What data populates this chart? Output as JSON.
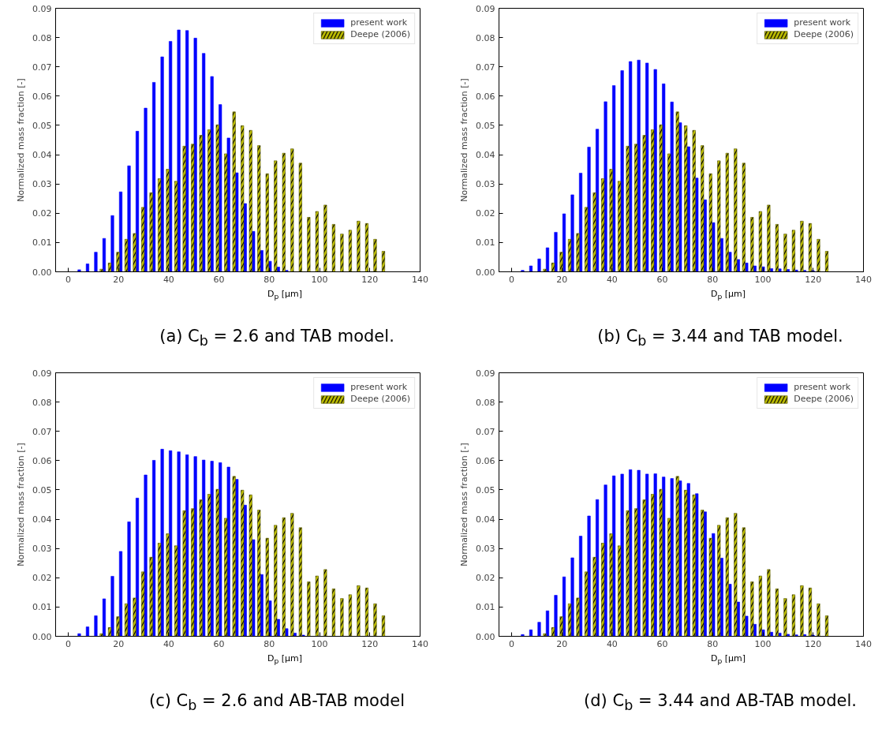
{
  "chart_data": [
    {
      "type": "bar",
      "title": "(a) C$_{b}$ = 2.6 and TAB model.",
      "xlabel": "D$_{p}$ [µm]",
      "ylabel": "Normalized mass fraction [-]",
      "legend": "top right",
      "grid": false,
      "xlim": [
        -5,
        140
      ],
      "xticks": [
        0,
        20,
        40,
        60,
        80,
        100,
        120,
        140
      ],
      "ylim": [
        0,
        0.09
      ],
      "yticks": [
        {
          "value": 0,
          "label": "0.00"
        },
        {
          "value": 0.01,
          "label": "0.01"
        },
        {
          "value": 0.02,
          "label": "0.02"
        },
        {
          "value": 0.03,
          "label": "0.03"
        },
        {
          "value": 0.04,
          "label": "0.04"
        },
        {
          "value": 0.05,
          "label": "0.05"
        },
        {
          "value": 0.06,
          "label": "0.06"
        },
        {
          "value": 0.07,
          "label": "0.07"
        },
        {
          "value": 0.08,
          "label": "0.08"
        },
        {
          "value": 0.09,
          "label": "0.09"
        }
      ],
      "series": [
        {
          "name": "present work",
          "color": "#0000ff",
          "x": [
            4.4,
            7.7,
            11,
            14.3,
            17.6,
            20.9,
            24.2,
            27.5,
            30.8,
            34.1,
            37.4,
            40.7,
            44,
            47.3,
            50.6,
            53.9,
            57.2,
            60.5,
            63.8,
            67.1,
            70.4,
            73.7,
            77,
            80.3,
            83.6,
            86.9
          ],
          "values": [
            0.0007,
            0.0027,
            0.0067,
            0.0114,
            0.0192,
            0.0273,
            0.0362,
            0.048,
            0.0559,
            0.0647,
            0.0734,
            0.0787,
            0.0826,
            0.0824,
            0.0798,
            0.0746,
            0.0667,
            0.0571,
            0.0457,
            0.0338,
            0.0233,
            0.0138,
            0.0073,
            0.0036,
            0.0016,
            0.0005
          ]
        },
        {
          "name": "Deepe (2006)",
          "color": "#bfbf00",
          "x": [
            13.2,
            16.5,
            19.8,
            23.1,
            26.4,
            29.7,
            33,
            36.3,
            39.6,
            42.9,
            46.2,
            49.5,
            52.8,
            56.1,
            59.4,
            62.7,
            66,
            69.3,
            72.6,
            75.9,
            79.2,
            82.5,
            85.8,
            89.1,
            92.4,
            95.7,
            99,
            102.3,
            105.6,
            108.9,
            112.2,
            115.5,
            118.8,
            122.1,
            125.4
          ],
          "values": [
            0.0009,
            0.003,
            0.0067,
            0.0111,
            0.0131,
            0.022,
            0.027,
            0.0318,
            0.035,
            0.0309,
            0.0429,
            0.0436,
            0.0466,
            0.0485,
            0.0502,
            0.0403,
            0.0546,
            0.0499,
            0.0483,
            0.0431,
            0.0335,
            0.0379,
            0.0405,
            0.042,
            0.0371,
            0.0186,
            0.0206,
            0.0228,
            0.0162,
            0.0129,
            0.0142,
            0.0173,
            0.0165,
            0.0111,
            0.007
          ]
        }
      ]
    },
    {
      "type": "bar",
      "title": "(b) C$_{b}$ = 3.44 and TAB model.",
      "xlabel": "D$_{p}$ [µm]",
      "ylabel": "Normalized mass fraction [-]",
      "legend": "top right",
      "grid": false,
      "xlim": [
        -5,
        140
      ],
      "xticks": [
        0,
        20,
        40,
        60,
        80,
        100,
        120,
        140
      ],
      "ylim": [
        0,
        0.09
      ],
      "yticks": [
        {
          "value": 0,
          "label": "0.00"
        },
        {
          "value": 0.01,
          "label": "0.01"
        },
        {
          "value": 0.02,
          "label": "0.02"
        },
        {
          "value": 0.03,
          "label": "0.03"
        },
        {
          "value": 0.04,
          "label": "0.04"
        },
        {
          "value": 0.05,
          "label": "0.05"
        },
        {
          "value": 0.06,
          "label": "0.06"
        },
        {
          "value": 0.07,
          "label": "0.07"
        },
        {
          "value": 0.08,
          "label": "0.08"
        },
        {
          "value": 0.09,
          "label": "0.09"
        }
      ],
      "series": [
        {
          "name": "present work",
          "color": "#0000ff",
          "x": [
            4.4,
            7.7,
            11,
            14.3,
            17.6,
            20.9,
            24.2,
            27.5,
            30.8,
            34.1,
            37.4,
            40.7,
            44,
            47.3,
            50.6,
            53.9,
            57.2,
            60.5,
            63.8,
            67.1,
            70.4,
            73.7,
            77,
            80.3,
            83.6,
            86.9,
            90.2,
            93.5,
            96.8,
            100.1,
            103.4,
            106.7,
            110,
            113.3,
            116.6,
            119.9
          ],
          "values": [
            0.0005,
            0.002,
            0.0044,
            0.0082,
            0.0135,
            0.0198,
            0.0263,
            0.0337,
            0.0426,
            0.0487,
            0.0581,
            0.0636,
            0.0687,
            0.0718,
            0.0723,
            0.0713,
            0.0691,
            0.0642,
            0.058,
            0.0509,
            0.0427,
            0.032,
            0.0246,
            0.0168,
            0.0114,
            0.0067,
            0.0042,
            0.003,
            0.002,
            0.0017,
            0.0011,
            0.001,
            0.0008,
            0.0006,
            0.0005,
            0.0004
          ]
        },
        {
          "name": "Deepe (2006)",
          "color": "#bfbf00",
          "x": [
            13.2,
            16.5,
            19.8,
            23.1,
            26.4,
            29.7,
            33,
            36.3,
            39.6,
            42.9,
            46.2,
            49.5,
            52.8,
            56.1,
            59.4,
            62.7,
            66,
            69.3,
            72.6,
            75.9,
            79.2,
            82.5,
            85.8,
            89.1,
            92.4,
            95.7,
            99,
            102.3,
            105.6,
            108.9,
            112.2,
            115.5,
            118.8,
            122.1,
            125.4
          ],
          "values": [
            0.0009,
            0.003,
            0.0067,
            0.0111,
            0.0131,
            0.022,
            0.027,
            0.0318,
            0.035,
            0.0309,
            0.0429,
            0.0436,
            0.0466,
            0.0485,
            0.0502,
            0.0403,
            0.0546,
            0.0499,
            0.0483,
            0.0431,
            0.0335,
            0.0379,
            0.0405,
            0.042,
            0.0371,
            0.0186,
            0.0206,
            0.0228,
            0.0162,
            0.0129,
            0.0142,
            0.0173,
            0.0165,
            0.0111,
            0.007
          ]
        }
      ]
    },
    {
      "type": "bar",
      "title": "(c) C$_{b}$ = 2.6 and AB-TAB model",
      "xlabel": "D$_{p}$ [µm]",
      "ylabel": "Normalized mass fraction [-]",
      "legend": "top right",
      "grid": false,
      "xlim": [
        -5,
        140
      ],
      "xticks": [
        0,
        20,
        40,
        60,
        80,
        100,
        120,
        140
      ],
      "ylim": [
        0,
        0.09
      ],
      "yticks": [
        {
          "value": 0,
          "label": "0.00"
        },
        {
          "value": 0.01,
          "label": "0.01"
        },
        {
          "value": 0.02,
          "label": "0.02"
        },
        {
          "value": 0.03,
          "label": "0.03"
        },
        {
          "value": 0.04,
          "label": "0.04"
        },
        {
          "value": 0.05,
          "label": "0.05"
        },
        {
          "value": 0.06,
          "label": "0.06"
        },
        {
          "value": 0.07,
          "label": "0.07"
        },
        {
          "value": 0.08,
          "label": "0.08"
        },
        {
          "value": 0.09,
          "label": "0.09"
        }
      ],
      "series": [
        {
          "name": "present work",
          "color": "#0000ff",
          "x": [
            4.4,
            7.7,
            11,
            14.3,
            17.6,
            20.9,
            24.2,
            27.5,
            30.8,
            34.1,
            37.4,
            40.7,
            44,
            47.3,
            50.6,
            53.9,
            57.2,
            60.5,
            63.8,
            67.1,
            70.4,
            73.7,
            77,
            80.3,
            83.6,
            86.9,
            90.2,
            93.5
          ],
          "values": [
            0.0009,
            0.0032,
            0.007,
            0.0128,
            0.0205,
            0.029,
            0.0391,
            0.0472,
            0.0551,
            0.0601,
            0.0639,
            0.0634,
            0.063,
            0.062,
            0.0614,
            0.0602,
            0.0598,
            0.0593,
            0.0578,
            0.0536,
            0.0448,
            0.033,
            0.0211,
            0.0121,
            0.0058,
            0.0026,
            0.0011,
            0.0004
          ]
        },
        {
          "name": "Deepe (2006)",
          "color": "#bfbf00",
          "x": [
            13.2,
            16.5,
            19.8,
            23.1,
            26.4,
            29.7,
            33,
            36.3,
            39.6,
            42.9,
            46.2,
            49.5,
            52.8,
            56.1,
            59.4,
            62.7,
            66,
            69.3,
            72.6,
            75.9,
            79.2,
            82.5,
            85.8,
            89.1,
            92.4,
            95.7,
            99,
            102.3,
            105.6,
            108.9,
            112.2,
            115.5,
            118.8,
            122.1,
            125.4
          ],
          "values": [
            0.0009,
            0.003,
            0.0067,
            0.0111,
            0.0131,
            0.022,
            0.027,
            0.0318,
            0.035,
            0.0309,
            0.0429,
            0.0436,
            0.0466,
            0.0485,
            0.0502,
            0.0403,
            0.0546,
            0.0499,
            0.0483,
            0.0431,
            0.0335,
            0.0379,
            0.0405,
            0.042,
            0.0371,
            0.0186,
            0.0206,
            0.0228,
            0.0162,
            0.0129,
            0.0142,
            0.0173,
            0.0165,
            0.0111,
            0.007
          ]
        }
      ]
    },
    {
      "type": "bar",
      "title": "(d) C$_{b}$ = 3.44 and AB-TAB model.",
      "xlabel": "D$_{p}$ [µm]",
      "ylabel": "Normalized mass fraction [-]",
      "legend": "top right",
      "grid": false,
      "xlim": [
        -5,
        140
      ],
      "xticks": [
        0,
        20,
        40,
        60,
        80,
        100,
        120,
        140
      ],
      "ylim": [
        0,
        0.09
      ],
      "yticks": [
        {
          "value": 0,
          "label": "0.00"
        },
        {
          "value": 0.01,
          "label": "0.01"
        },
        {
          "value": 0.02,
          "label": "0.02"
        },
        {
          "value": 0.03,
          "label": "0.03"
        },
        {
          "value": 0.04,
          "label": "0.04"
        },
        {
          "value": 0.05,
          "label": "0.05"
        },
        {
          "value": 0.06,
          "label": "0.06"
        },
        {
          "value": 0.07,
          "label": "0.07"
        },
        {
          "value": 0.08,
          "label": "0.08"
        },
        {
          "value": 0.09,
          "label": "0.09"
        }
      ],
      "series": [
        {
          "name": "present work",
          "color": "#0000ff",
          "x": [
            4.4,
            7.7,
            11,
            14.3,
            17.6,
            20.9,
            24.2,
            27.5,
            30.8,
            34.1,
            37.4,
            40.7,
            44,
            47.3,
            50.6,
            53.9,
            57.2,
            60.5,
            63.8,
            67.1,
            70.4,
            73.7,
            77,
            80.3,
            83.6,
            86.9,
            90.2,
            93.5,
            96.8,
            100.1,
            103.4,
            106.7,
            110,
            113.3,
            116.6,
            119.9
          ],
          "values": [
            0.0006,
            0.0022,
            0.0048,
            0.0087,
            0.014,
            0.0203,
            0.0268,
            0.0342,
            0.0411,
            0.0467,
            0.0517,
            0.0548,
            0.0554,
            0.0569,
            0.0567,
            0.0554,
            0.0555,
            0.0544,
            0.0539,
            0.0531,
            0.0522,
            0.0487,
            0.0425,
            0.0351,
            0.0267,
            0.0178,
            0.0117,
            0.0069,
            0.0041,
            0.0022,
            0.0014,
            0.0011,
            0.0007,
            0.0005,
            0.0006,
            0.0004
          ]
        },
        {
          "name": "Deepe (2006)",
          "color": "#bfbf00",
          "x": [
            13.2,
            16.5,
            19.8,
            23.1,
            26.4,
            29.7,
            33,
            36.3,
            39.6,
            42.9,
            46.2,
            49.5,
            52.8,
            56.1,
            59.4,
            62.7,
            66,
            69.3,
            72.6,
            75.9,
            79.2,
            82.5,
            85.8,
            89.1,
            92.4,
            95.7,
            99,
            102.3,
            105.6,
            108.9,
            112.2,
            115.5,
            118.8,
            122.1,
            125.4
          ],
          "values": [
            0.0009,
            0.003,
            0.0067,
            0.0111,
            0.0131,
            0.022,
            0.027,
            0.0318,
            0.035,
            0.0309,
            0.0429,
            0.0436,
            0.0466,
            0.0485,
            0.0502,
            0.0403,
            0.0546,
            0.0499,
            0.0483,
            0.0431,
            0.0335,
            0.0379,
            0.0405,
            0.042,
            0.0371,
            0.0186,
            0.0206,
            0.0228,
            0.0162,
            0.0129,
            0.0142,
            0.0173,
            0.0165,
            0.0111,
            0.007
          ]
        }
      ]
    }
  ]
}
